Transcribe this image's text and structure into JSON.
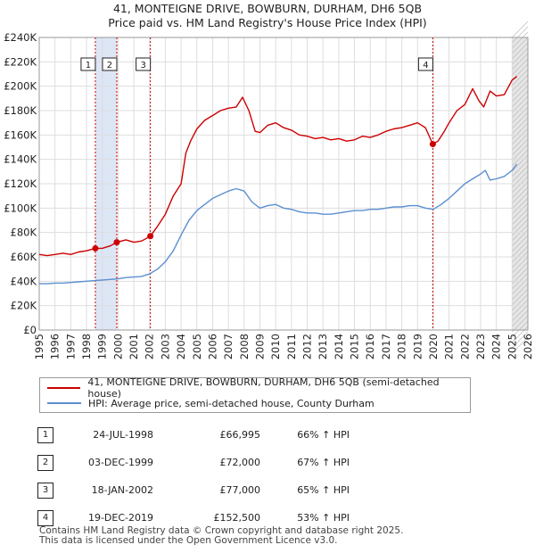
{
  "title_line1": "41, MONTEIGNE DRIVE, BOWBURN, DURHAM, DH6 5QB",
  "title_line2": "Price paid vs. HM Land Registry's House Price Index (HPI)",
  "legend": [
    {
      "label": "41, MONTEIGNE DRIVE, BOWBURN, DURHAM, DH6 5QB (semi-detached house)",
      "color": "#cc0000"
    },
    {
      "label": "HPI: Average price, semi-detached house, County Durham",
      "color": "#5b8fd0"
    }
  ],
  "transactions": [
    {
      "num": "1",
      "date": "24-JUL-1998",
      "price": "£66,995",
      "hpi": "66% ↑ HPI"
    },
    {
      "num": "2",
      "date": "03-DEC-1999",
      "price": "£72,000",
      "hpi": "67% ↑ HPI"
    },
    {
      "num": "3",
      "date": "18-JAN-2002",
      "price": "£77,000",
      "hpi": "65% ↑ HPI"
    },
    {
      "num": "4",
      "date": "19-DEC-2019",
      "price": "£152,500",
      "hpi": "53% ↑ HPI"
    }
  ],
  "footer_line1": "Contains HM Land Registry data © Crown copyright and database right 2025.",
  "footer_line2": "This data is licensed under the Open Government Licence v3.0.",
  "colors": {
    "red": "#cc0000",
    "blue": "#5b8fd0",
    "shade": "#dde6f5"
  },
  "chart_data": {
    "type": "line",
    "xlim": [
      1995,
      2026
    ],
    "ylim": [
      0,
      240000
    ],
    "yticks": [
      0,
      20000,
      40000,
      60000,
      80000,
      100000,
      120000,
      140000,
      160000,
      180000,
      200000,
      220000,
      240000
    ],
    "ytick_labels": [
      "£0",
      "£20K",
      "£40K",
      "£60K",
      "£80K",
      "£100K",
      "£120K",
      "£140K",
      "£160K",
      "£180K",
      "£200K",
      "£220K",
      "£240K"
    ],
    "xticks": [
      "1995",
      "1996",
      "1997",
      "1998",
      "1999",
      "2000",
      "2001",
      "2002",
      "2003",
      "2004",
      "2005",
      "2006",
      "2007",
      "2008",
      "2009",
      "2010",
      "2011",
      "2012",
      "2013",
      "2014",
      "2015",
      "2016",
      "2017",
      "2018",
      "2019",
      "2020",
      "2021",
      "2022",
      "2023",
      "2024",
      "2025",
      "2026"
    ],
    "grid": true,
    "shaded_ranges": [
      [
        1998.56,
        1999.92
      ],
      [
        2025.0,
        2026.0
      ]
    ],
    "series": [
      {
        "name": "41, MONTEIGNE DRIVE, BOWBURN, DURHAM, DH6 5QB (semi-detached house)",
        "x": [
          1995,
          1995.5,
          1996,
          1996.5,
          1997,
          1997.5,
          1998,
          1998.56,
          1999,
          1999.5,
          1999.92,
          2000.5,
          2001,
          2001.5,
          2002.05,
          2002.5,
          2003,
          2003.5,
          2004,
          2004.3,
          2004.6,
          2005,
          2005.5,
          2006,
          2006.5,
          2007,
          2007.5,
          2007.9,
          2008.3,
          2008.7,
          2009,
          2009.5,
          2010,
          2010.5,
          2011,
          2011.5,
          2012,
          2012.5,
          2013,
          2013.5,
          2014,
          2014.5,
          2015,
          2015.5,
          2016,
          2016.5,
          2017,
          2017.5,
          2018,
          2018.5,
          2019,
          2019.5,
          2019.97,
          2020.3,
          2020.7,
          2021,
          2021.5,
          2022,
          2022.5,
          2022.9,
          2023.2,
          2023.6,
          2024,
          2024.5,
          2025,
          2025.3
        ],
        "values": [
          62000,
          61000,
          62000,
          63000,
          62000,
          64000,
          65000,
          66995,
          67000,
          69000,
          72000,
          74000,
          72000,
          73000,
          77000,
          85000,
          95000,
          110000,
          120000,
          145000,
          155000,
          165000,
          172000,
          176000,
          180000,
          182000,
          183000,
          191000,
          180000,
          163000,
          162000,
          168000,
          170000,
          166000,
          164000,
          160000,
          159000,
          157000,
          158000,
          156000,
          157000,
          155000,
          156000,
          159000,
          158000,
          160000,
          163000,
          165000,
          166000,
          168000,
          170000,
          166000,
          152500,
          155000,
          163000,
          170000,
          180000,
          185000,
          198000,
          188000,
          183000,
          196000,
          192000,
          193000,
          205000,
          208000
        ]
      },
      {
        "name": "HPI: Average price, semi-detached house, County Durham",
        "x": [
          1995,
          1995.5,
          1996,
          1996.5,
          1997,
          1997.5,
          1998,
          1998.5,
          1999,
          1999.5,
          2000,
          2000.5,
          2001,
          2001.5,
          2002,
          2002.5,
          2003,
          2003.5,
          2004,
          2004.5,
          2005,
          2005.5,
          2006,
          2006.5,
          2007,
          2007.5,
          2008,
          2008.5,
          2009,
          2009.5,
          2010,
          2010.5,
          2011,
          2011.5,
          2012,
          2012.5,
          2013,
          2013.5,
          2014,
          2014.5,
          2015,
          2015.5,
          2016,
          2016.5,
          2017,
          2017.5,
          2018,
          2018.5,
          2019,
          2019.5,
          2020,
          2020.5,
          2021,
          2021.5,
          2022,
          2022.5,
          2023,
          2023.3,
          2023.6,
          2024,
          2024.5,
          2025,
          2025.3
        ],
        "values": [
          38000,
          38000,
          38500,
          38500,
          39000,
          39500,
          40000,
          40500,
          41000,
          41500,
          42000,
          43000,
          43500,
          44000,
          46000,
          50000,
          56000,
          65000,
          78000,
          90000,
          98000,
          103000,
          108000,
          111000,
          114000,
          116000,
          114000,
          105000,
          100000,
          102000,
          103000,
          100000,
          99000,
          97000,
          96000,
          96000,
          95000,
          95000,
          96000,
          97000,
          98000,
          98000,
          99000,
          99000,
          100000,
          101000,
          101000,
          102000,
          102000,
          100000,
          99000,
          103000,
          108000,
          114000,
          120000,
          124000,
          128000,
          131000,
          123000,
          124000,
          126000,
          131000,
          136000
        ]
      }
    ],
    "markers": [
      {
        "label": "1",
        "x": 1998.56,
        "y": 66995
      },
      {
        "label": "2",
        "x": 1999.92,
        "y": 72000
      },
      {
        "label": "3",
        "x": 2002.05,
        "y": 77000
      },
      {
        "label": "4",
        "x": 2019.97,
        "y": 152500
      }
    ]
  }
}
